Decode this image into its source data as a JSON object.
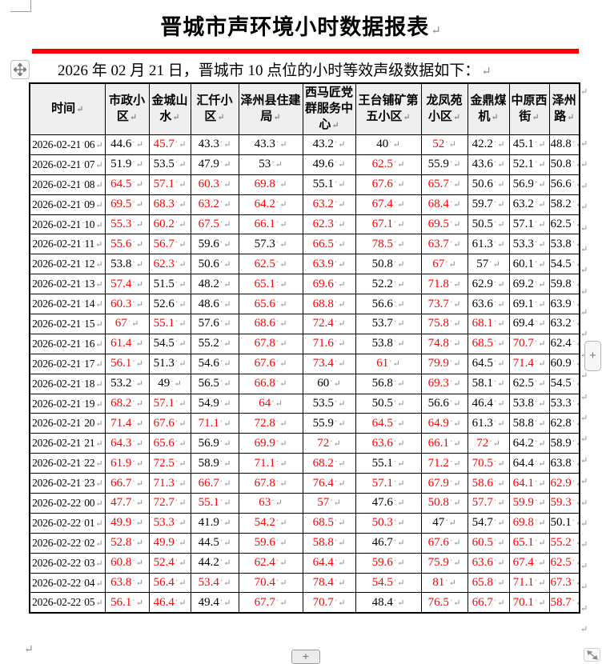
{
  "document": {
    "title": "晋城市声环境小时数据报表",
    "intro": "2026 年 02 月 21 日，晋城市 10 点位的小时等效声级数据如下：",
    "accent_color": "#ff0000",
    "exceed_value_color": "#ff0000",
    "header_bg": "#efefef",
    "paragraph_mark": "↵"
  },
  "controls": {
    "move_handle_icon": "move-cross-icon",
    "insert_button_label": "+",
    "resize_handle_icon": "diagonal-resize-icon"
  },
  "table": {
    "columns": [
      "时间",
      "市政小区",
      "金城山水",
      "汇仟小区",
      "泽州县住建局",
      "西马匠党群服务中心",
      "王台铺矿第五小区",
      "龙凤苑小区",
      "金鼎煤机",
      "中原西街",
      "泽州路"
    ],
    "rows": [
      {
        "time": "2026-02-21 06",
        "values": [
          "44.6",
          "45.7",
          "43.3",
          "43.3",
          "43.2",
          "40",
          "52",
          "42.2",
          "45.1",
          "48.8"
        ],
        "red": [
          0,
          1,
          0,
          0,
          0,
          0,
          1,
          0,
          0,
          0
        ]
      },
      {
        "time": "2026-02-21 07",
        "values": [
          "51.9",
          "53.5",
          "47.9",
          "53",
          "49.6",
          "62.5",
          "55.9",
          "43.6",
          "52.1",
          "50.8"
        ],
        "red": [
          0,
          0,
          0,
          0,
          0,
          1,
          0,
          0,
          0,
          0
        ]
      },
      {
        "time": "2026-02-21 08",
        "values": [
          "64.5",
          "57.1",
          "60.3",
          "69.8",
          "55.1",
          "67.6",
          "65.7",
          "50.6",
          "56.9",
          "56.6"
        ],
        "red": [
          1,
          1,
          1,
          1,
          0,
          1,
          1,
          0,
          0,
          0
        ]
      },
      {
        "time": "2026-02-21 09",
        "values": [
          "69.5",
          "68.3",
          "63.2",
          "64.2",
          "63.2",
          "67.4",
          "68.4",
          "59.7",
          "63.2",
          "58.2"
        ],
        "red": [
          1,
          1,
          1,
          1,
          1,
          1,
          1,
          0,
          0,
          0
        ]
      },
      {
        "time": "2026-02-21 10",
        "values": [
          "55.3",
          "60.2",
          "67.5",
          "66.1",
          "62.3",
          "67.1",
          "69.5",
          "50.5",
          "57.1",
          "62.5"
        ],
        "red": [
          1,
          1,
          1,
          1,
          1,
          1,
          1,
          0,
          0,
          0
        ]
      },
      {
        "time": "2026-02-21 11",
        "values": [
          "55.6",
          "56.7",
          "59.6",
          "57.3",
          "66.5",
          "78.5",
          "63.7",
          "61.3",
          "53.3",
          "53.8"
        ],
        "red": [
          1,
          1,
          0,
          0,
          1,
          1,
          1,
          0,
          0,
          0
        ]
      },
      {
        "time": "2026-02-21 12",
        "values": [
          "53.8",
          "62.3",
          "50.6",
          "62.5",
          "63.9",
          "50.8",
          "67",
          "57",
          "60.1",
          "54.5"
        ],
        "red": [
          0,
          1,
          0,
          1,
          1,
          0,
          1,
          0,
          0,
          0
        ]
      },
      {
        "time": "2026-02-21 13",
        "values": [
          "57.4",
          "51.5",
          "48.2",
          "65.1",
          "69.6",
          "52.2",
          "71.8",
          "62.9",
          "69.2",
          "59.8"
        ],
        "red": [
          1,
          0,
          0,
          1,
          1,
          0,
          1,
          0,
          0,
          0
        ]
      },
      {
        "time": "2026-02-21 14",
        "values": [
          "60.3",
          "52.6",
          "48.6",
          "65.6",
          "68.8",
          "56.6",
          "73.7",
          "63.6",
          "69.1",
          "63.9"
        ],
        "red": [
          1,
          0,
          0,
          1,
          1,
          0,
          1,
          0,
          0,
          0
        ]
      },
      {
        "time": "2026-02-21 15",
        "values": [
          "67",
          "55.1",
          "57.6",
          "68.6",
          "72.4",
          "53.7",
          "75.8",
          "68.1",
          "69.4",
          "63.2"
        ],
        "red": [
          1,
          1,
          0,
          1,
          1,
          0,
          1,
          1,
          0,
          0
        ]
      },
      {
        "time": "2026-02-21 16",
        "values": [
          "61.4",
          "54.5",
          "55.2",
          "67.8",
          "71.6",
          "53.8",
          "74.8",
          "68.5",
          "70.7",
          "62.4"
        ],
        "red": [
          1,
          0,
          0,
          1,
          1,
          0,
          1,
          1,
          1,
          0
        ]
      },
      {
        "time": "2026-02-21 17",
        "values": [
          "56.1",
          "51.3",
          "54.6",
          "67.6",
          "73.4",
          "61",
          "79.9",
          "64.5",
          "71.4",
          "60.9"
        ],
        "red": [
          1,
          0,
          0,
          1,
          1,
          1,
          1,
          0,
          1,
          0
        ]
      },
      {
        "time": "2026-02-21 18",
        "values": [
          "53.2",
          "49",
          "56.5",
          "66.8",
          "60",
          "56.8",
          "69.3",
          "58.1",
          "62.5",
          "54.5"
        ],
        "red": [
          0,
          0,
          0,
          1,
          0,
          0,
          1,
          0,
          0,
          0
        ]
      },
      {
        "time": "2026-02-21 19",
        "values": [
          "68.2",
          "57.1",
          "54.9",
          "64",
          "53.5",
          "50.5",
          "56.6",
          "46.4",
          "53.8",
          "53.3"
        ],
        "red": [
          1,
          1,
          0,
          1,
          0,
          0,
          0,
          0,
          0,
          0
        ]
      },
      {
        "time": "2026-02-21 20",
        "values": [
          "71.4",
          "67.6",
          "71.1",
          "72.8",
          "55.9",
          "64.5",
          "64.9",
          "61.3",
          "58.8",
          "62.8"
        ],
        "red": [
          1,
          1,
          1,
          1,
          0,
          1,
          1,
          0,
          0,
          0
        ]
      },
      {
        "time": "2026-02-21 21",
        "values": [
          "64.3",
          "65.6",
          "56.9",
          "69.9",
          "72",
          "63.6",
          "66.1",
          "72",
          "64.2",
          "58.9"
        ],
        "red": [
          1,
          1,
          0,
          1,
          1,
          1,
          1,
          1,
          0,
          0
        ]
      },
      {
        "time": "2026-02-21 22",
        "values": [
          "61.9",
          "72.5",
          "58.9",
          "71.1",
          "68.2",
          "55.1",
          "71.2",
          "70.5",
          "64.4",
          "63.8"
        ],
        "red": [
          1,
          1,
          0,
          1,
          1,
          0,
          1,
          1,
          0,
          0
        ]
      },
      {
        "time": "2026-02-21 23",
        "values": [
          "66.7",
          "71.3",
          "66.7",
          "67.8",
          "76.4",
          "57.1",
          "67.9",
          "58.6",
          "64.1",
          "62.9"
        ],
        "red": [
          1,
          1,
          1,
          1,
          1,
          1,
          1,
          1,
          1,
          1
        ]
      },
      {
        "time": "2026-02-22 00",
        "values": [
          "47.7",
          "72.7",
          "55.1",
          "63",
          "57",
          "47.6",
          "50.8",
          "57.7",
          "59.9",
          "59.3"
        ],
        "red": [
          1,
          1,
          1,
          1,
          1,
          0,
          1,
          1,
          1,
          1
        ]
      },
      {
        "time": "2026-02-22 01",
        "values": [
          "49.9",
          "53.3",
          "41.9",
          "54.2",
          "68.5",
          "50.3",
          "47",
          "54.7",
          "69.8",
          "50.1"
        ],
        "red": [
          1,
          1,
          0,
          1,
          1,
          1,
          0,
          0,
          1,
          0
        ]
      },
      {
        "time": "2026-02-22 02",
        "values": [
          "52.8",
          "49.9",
          "44.5",
          "59.6",
          "58.8",
          "46.7",
          "67.6",
          "60.5",
          "65.1",
          "55.2"
        ],
        "red": [
          1,
          1,
          0,
          1,
          1,
          0,
          1,
          1,
          1,
          1
        ]
      },
      {
        "time": "2026-02-22 03",
        "values": [
          "60.8",
          "52.4",
          "44.2",
          "62.4",
          "64.4",
          "59.6",
          "75.9",
          "63.6",
          "67.4",
          "62.5"
        ],
        "red": [
          1,
          1,
          0,
          1,
          1,
          1,
          1,
          1,
          1,
          1
        ]
      },
      {
        "time": "2026-02-22 04",
        "values": [
          "63.8",
          "56.4",
          "53.4",
          "70.4",
          "78.4",
          "54.5",
          "81",
          "65.8",
          "71.1",
          "67.3"
        ],
        "red": [
          1,
          1,
          1,
          1,
          1,
          1,
          1,
          1,
          1,
          1
        ]
      },
      {
        "time": "2026-02-22 05",
        "values": [
          "56.1",
          "46.4",
          "49.4",
          "67.7",
          "70.7",
          "48.4",
          "76.5",
          "66.7",
          "70.1",
          "58.7"
        ],
        "red": [
          1,
          1,
          0,
          1,
          1,
          0,
          1,
          1,
          1,
          1
        ]
      }
    ]
  }
}
